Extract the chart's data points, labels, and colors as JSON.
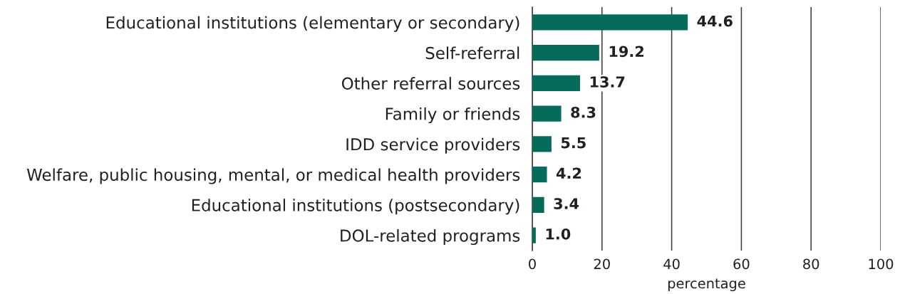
{
  "chart_data": {
    "type": "bar",
    "orientation": "horizontal",
    "categories": [
      "Educational institutions (elementary or secondary)",
      "Self-referral",
      "Other referral sources",
      "Family or friends",
      "IDD service providers",
      "Welfare, public housing, mental, or medical health providers",
      "Educational institutions (postsecondary)",
      "DOL-related programs"
    ],
    "values": [
      44.6,
      19.2,
      13.7,
      8.3,
      5.5,
      4.2,
      3.4,
      1.0
    ],
    "value_labels": [
      "44.6",
      "19.2",
      "13.7",
      "8.3",
      "5.5",
      "4.2",
      "3.4",
      "1.0"
    ],
    "color": "#066b5a",
    "xlabel": "percentage",
    "xlim": [
      0,
      100
    ],
    "xticks": [
      0,
      20,
      40,
      60,
      80,
      100
    ],
    "grid": "x"
  }
}
